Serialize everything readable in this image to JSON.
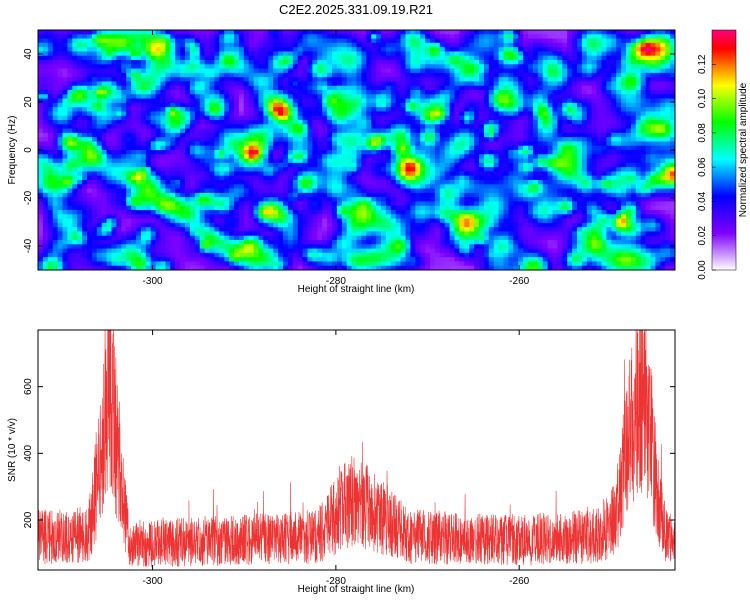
{
  "figure": {
    "title": "C2E2.2025.331.09.19.R21"
  },
  "chart_data": [
    {
      "type": "heatmap",
      "title": "C2E2.2025.331.09.19.R21",
      "xlabel": "Height of straight line (km)",
      "ylabel": "Frequency (Hz)",
      "xlim": [
        -312.5,
        -243
      ],
      "ylim": [
        -50,
        50
      ],
      "xticks": [
        -300,
        -280,
        -260
      ],
      "yticks": [
        40,
        20,
        0,
        -20,
        -40
      ],
      "colorbar": {
        "label": "Normalized spectral amplitude",
        "range": [
          0,
          0.14
        ],
        "ticks": [
          "0.00",
          "0.02",
          "0.04",
          "0.06",
          "0.08",
          "0.10",
          "0.12"
        ],
        "colormap": [
          "#ffffff",
          "#c080ff",
          "#8000ff",
          "#4000ff",
          "#0000ff",
          "#0080ff",
          "#00ffff",
          "#00ff80",
          "#00ff00",
          "#80ff00",
          "#ffff00",
          "#ff8000",
          "#ff0000",
          "#ff0080"
        ]
      },
      "description_values": {
        "mean_amplitude": 0.03,
        "peak_amplitude": 0.13
      }
    },
    {
      "type": "line",
      "xlabel": "Height of straight line (km)",
      "ylabel": "SNR (10 * v/v)",
      "xlim": [
        -312.5,
        -243
      ],
      "ylim": [
        50,
        770
      ],
      "xticks": [
        -300,
        -280,
        -260
      ],
      "yticks": [
        200,
        400,
        600
      ],
      "series_color": "#ee3333",
      "envelope": [
        {
          "x": -312.5,
          "y": 150
        },
        {
          "x": -309,
          "y": 150
        },
        {
          "x": -307,
          "y": 160
        },
        {
          "x": -305.8,
          "y": 360
        },
        {
          "x": -305.0,
          "y": 640
        },
        {
          "x": -304.4,
          "y": 560
        },
        {
          "x": -303.5,
          "y": 300
        },
        {
          "x": -302.5,
          "y": 130
        },
        {
          "x": -300,
          "y": 130
        },
        {
          "x": -290,
          "y": 140
        },
        {
          "x": -282,
          "y": 150
        },
        {
          "x": -278.5,
          "y": 260
        },
        {
          "x": -276,
          "y": 230
        },
        {
          "x": -272,
          "y": 150
        },
        {
          "x": -260,
          "y": 140
        },
        {
          "x": -252,
          "y": 150
        },
        {
          "x": -249.5,
          "y": 200
        },
        {
          "x": -248.0,
          "y": 450
        },
        {
          "x": -246.8,
          "y": 600
        },
        {
          "x": -246.0,
          "y": 540
        },
        {
          "x": -245.0,
          "y": 300
        },
        {
          "x": -244.0,
          "y": 150
        },
        {
          "x": -243,
          "y": 140
        }
      ]
    }
  ]
}
